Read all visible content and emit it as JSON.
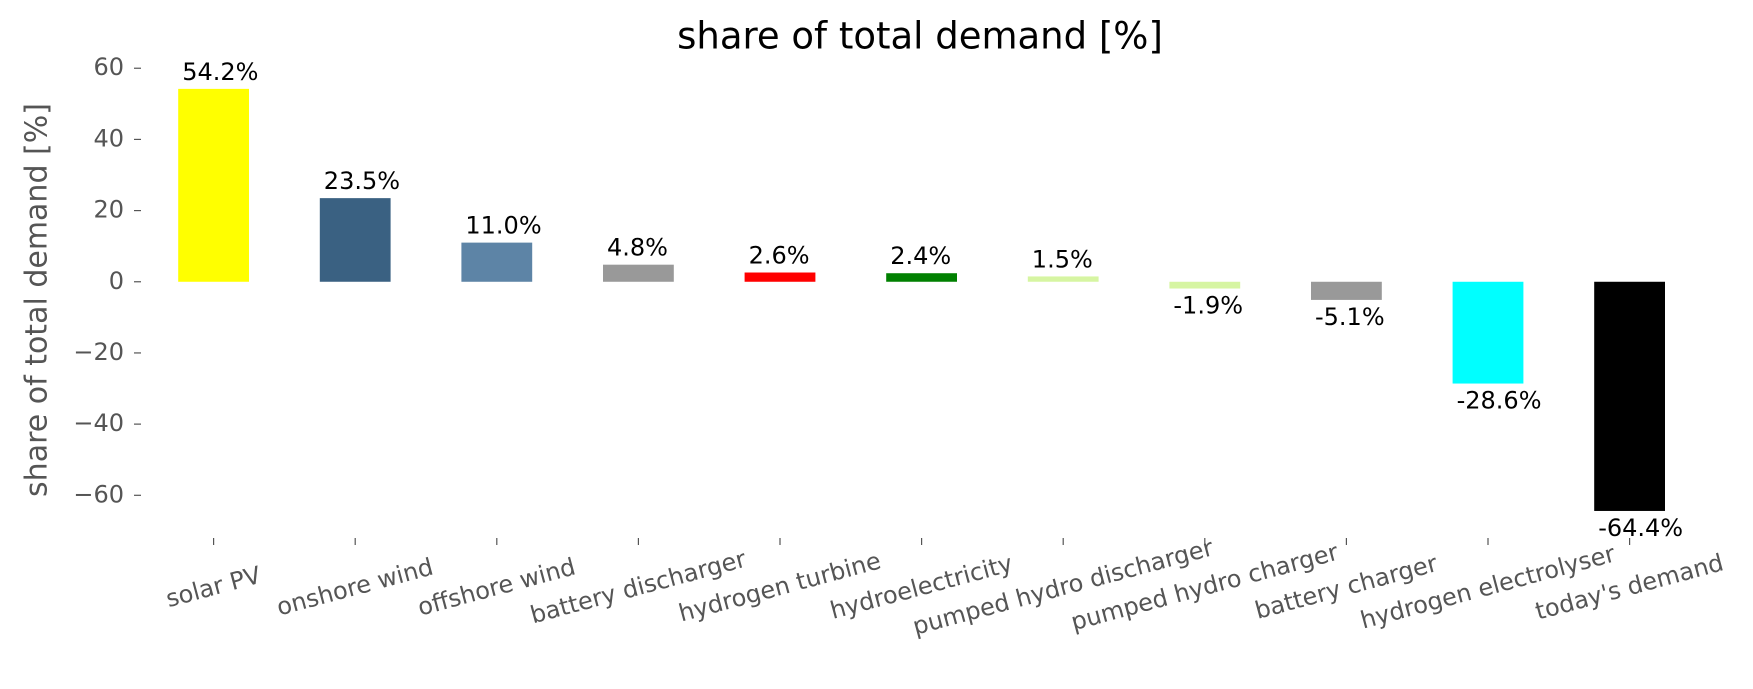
{
  "chart_data": {
    "type": "bar",
    "title": "share of total demand [%]",
    "ylabel": "share of total demand [%]",
    "categories": [
      "solar PV",
      "onshore wind",
      "offshore wind",
      "battery discharger",
      "hydrogen turbine",
      "hydroelectricity",
      "pumped hydro discharger",
      "pumped hydro charger",
      "battery charger",
      "hydrogen electrolyser",
      "today's demand"
    ],
    "values": [
      54.2,
      23.5,
      11.0,
      4.8,
      2.6,
      2.4,
      1.5,
      -1.9,
      -5.1,
      -28.6,
      -64.4
    ],
    "value_labels": [
      "54.2%",
      "23.5%",
      "11.0%",
      "4.8%",
      "2.6%",
      "2.4%",
      "1.5%",
      "-1.9%",
      "-5.1%",
      "-28.6%",
      "-64.4%"
    ],
    "colors": [
      "#ffff00",
      "#3a6182",
      "#5d84a6",
      "#999999",
      "#ff0000",
      "#008000",
      "#d6f5a2",
      "#d6f5a2",
      "#999999",
      "#00ffff",
      "#000000"
    ],
    "ylim": [
      -72,
      64
    ],
    "yticks": [
      {
        "value": -60,
        "label": "−60"
      },
      {
        "value": -40,
        "label": "−40"
      },
      {
        "value": -20,
        "label": "−20"
      },
      0,
      20,
      40,
      60
    ],
    "grid": false
  }
}
